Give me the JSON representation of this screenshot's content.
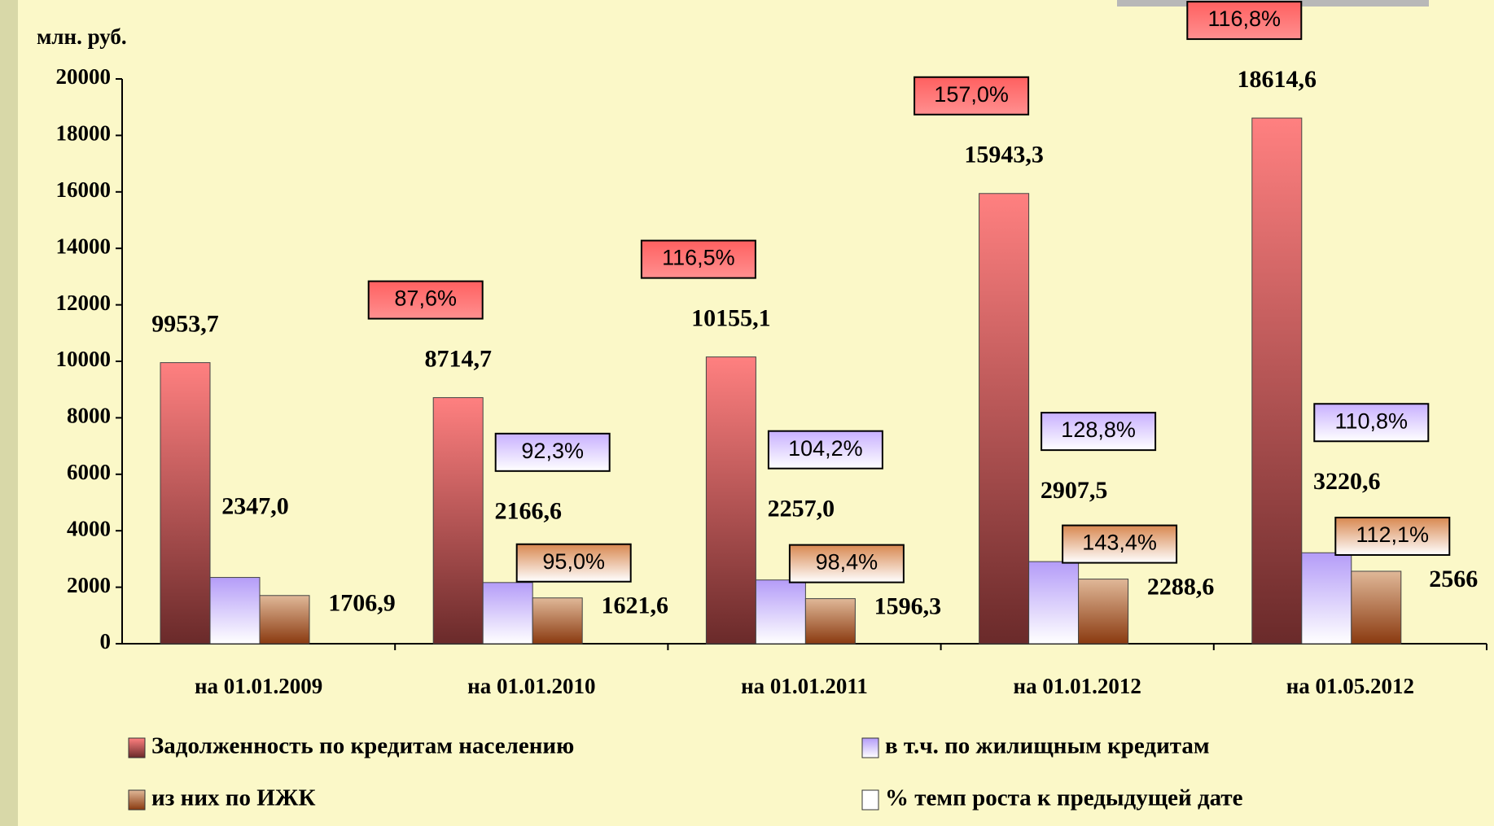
{
  "chart_data": {
    "type": "bar",
    "y_label": "млн. руб.",
    "categories": [
      "на 01.01.2009",
      "на 01.01.2010",
      "на 01.01.2011",
      "на 01.01.2012",
      "на 01.05.2012"
    ],
    "series": [
      {
        "name": "Задолженность по кредитам населению",
        "color": "#e05858",
        "values": [
          9953.7,
          8714.7,
          10155.1,
          15943.3,
          18614.6
        ],
        "value_labels": [
          "9953,7",
          "8714,7",
          "10155,1",
          "15943,3",
          "18614,6"
        ],
        "growth": {
          "values": [
            null,
            87.6,
            116.5,
            157.0,
            116.8
          ],
          "value_labels": [
            null,
            "87,6%",
            "116,5%",
            "157,0%",
            "116,8%"
          ]
        }
      },
      {
        "name": "в т.ч. по жилищным кредитам",
        "color": "#b49cf8",
        "values": [
          2347.0,
          2166.6,
          2257.0,
          2907.5,
          3220.6
        ],
        "value_labels": [
          "2347,0",
          "2166,6",
          "2257,0",
          "2907,5",
          "3220,6"
        ],
        "growth": {
          "values": [
            null,
            92.3,
            104.2,
            128.8,
            110.8
          ],
          "value_labels": [
            null,
            "92,3%",
            "104,2%",
            "128,8%",
            "110,8%"
          ]
        }
      },
      {
        "name": "из них по ИЖК",
        "color": "#b8703c",
        "values": [
          1706.9,
          1621.6,
          1596.3,
          2288.6,
          2566
        ],
        "value_labels": [
          "1706,9",
          "1621,6",
          "1596,3",
          "2288,6",
          "2566"
        ],
        "growth": {
          "values": [
            null,
            95.0,
            98.4,
            143.4,
            112.1
          ],
          "value_labels": [
            null,
            "95,0%",
            "98,4%",
            "143,4%",
            "112,1%"
          ]
        }
      }
    ],
    "growth_legend": {
      "name": "% темп роста к предыдущей дате",
      "color": "#ffffff"
    },
    "ylim": [
      0,
      20000
    ],
    "yticks": [
      0,
      2000,
      4000,
      6000,
      8000,
      10000,
      12000,
      14000,
      16000,
      18000,
      20000
    ]
  }
}
